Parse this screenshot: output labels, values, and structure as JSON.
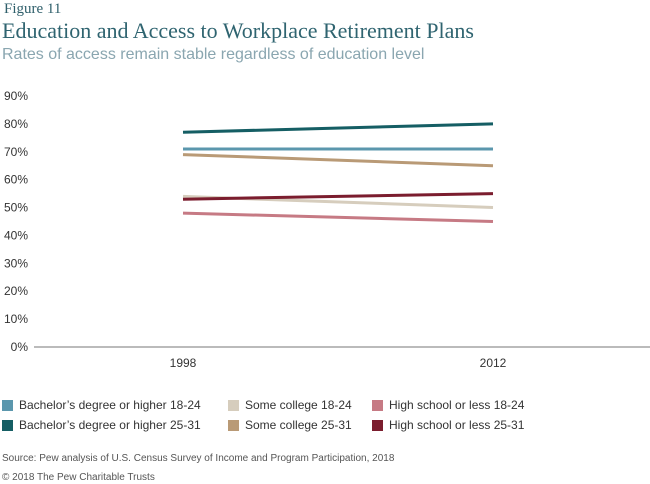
{
  "figure_label": "Figure 11",
  "source": "Source: Pew analysis of U.S. Census Survey of Income and Program Participation, 2018",
  "copyright": "© 2018 The Pew Charitable Trusts",
  "chart_data": {
    "type": "line",
    "title": "Education and Access to Workplace Retirement Plans",
    "subtitle": "Rates of access remain stable regardless of education level",
    "xlabel": "",
    "ylabel": "",
    "x": [
      "1998",
      "2012"
    ],
    "ylim": [
      0,
      90
    ],
    "yticks": [
      0,
      10,
      20,
      30,
      40,
      50,
      60,
      70,
      80,
      90
    ],
    "ytick_labels": [
      "0%",
      "10%",
      "20%",
      "30%",
      "40%",
      "50%",
      "60%",
      "70%",
      "80%",
      "90%"
    ],
    "grid": false,
    "legend_position": "bottom",
    "series": [
      {
        "name": "Bachelor’s degree or higher 18-24",
        "color": "#5b97ad",
        "values": [
          71,
          71
        ]
      },
      {
        "name": "Bachelor’s degree or higher 25-31",
        "color": "#155e64",
        "values": [
          77,
          80
        ]
      },
      {
        "name": "Some college 18-24",
        "color": "#d6cdbd",
        "values": [
          54,
          50
        ]
      },
      {
        "name": "Some college 25-31",
        "color": "#b99a76",
        "values": [
          69,
          65
        ]
      },
      {
        "name": "High school or less 18-24",
        "color": "#c67a84",
        "values": [
          48,
          45
        ]
      },
      {
        "name": "High school or less 25-31",
        "color": "#7b1d2e",
        "values": [
          53,
          55
        ]
      }
    ]
  }
}
